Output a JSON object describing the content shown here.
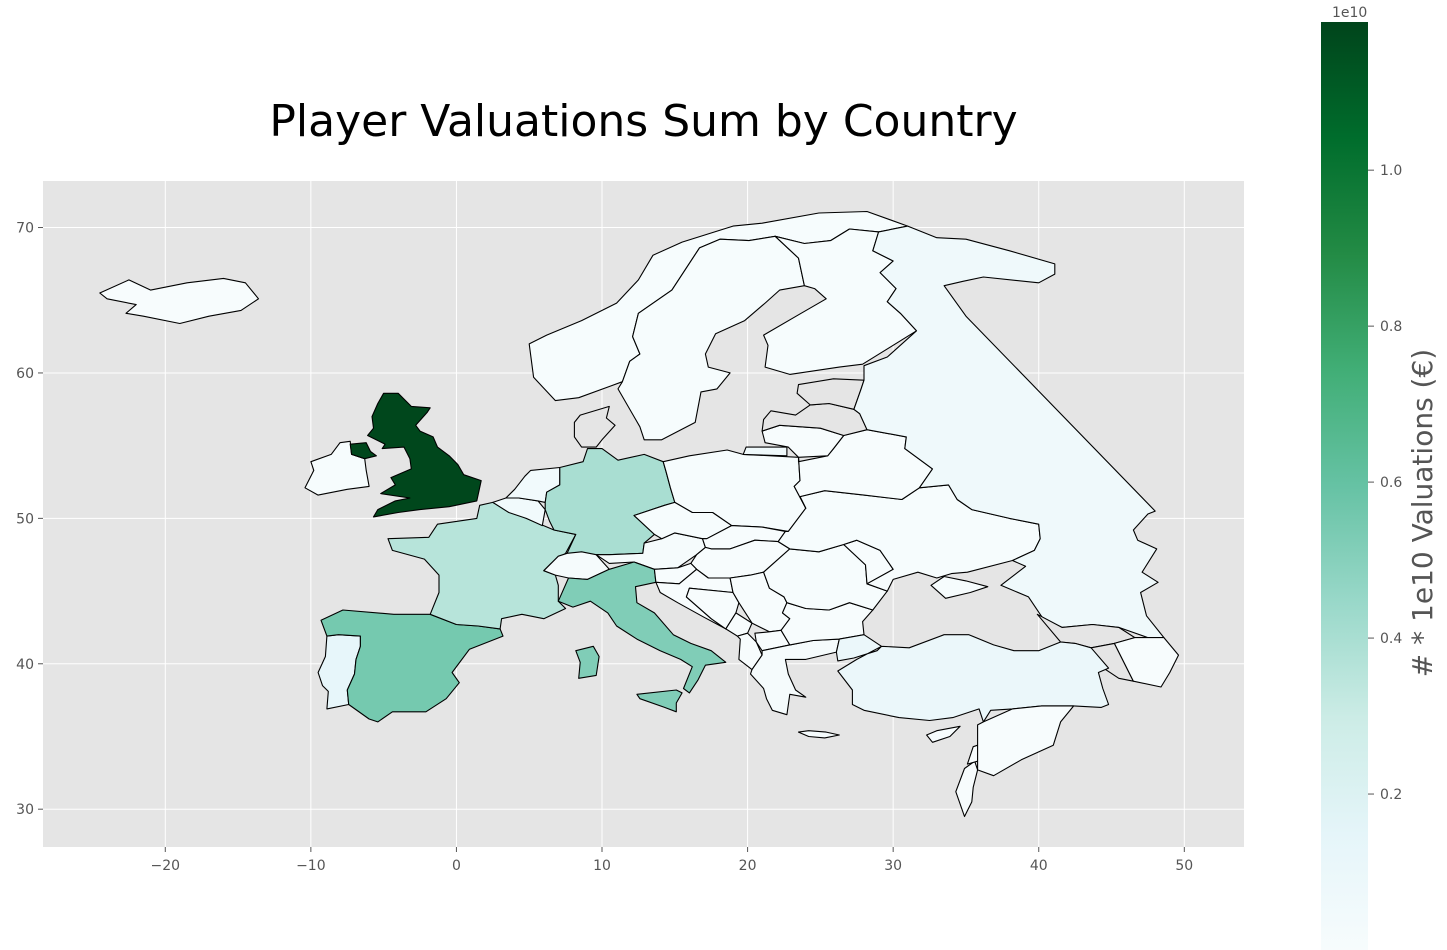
{
  "chart_data": {
    "type": "choropleth map",
    "title": "Player Valuations Sum by Country",
    "xlim": [
      -28.4,
      54.1
    ],
    "ylim": [
      27.4,
      73.2
    ],
    "x_ticks": [
      -20,
      -10,
      0,
      10,
      20,
      30,
      40,
      50
    ],
    "x_tick_labels": [
      "−20",
      "−10",
      "0",
      "10",
      "20",
      "30",
      "40",
      "50"
    ],
    "y_ticks": [
      30,
      40,
      50,
      60,
      70
    ],
    "y_tick_labels": [
      "30",
      "40",
      "50",
      "60",
      "70"
    ],
    "grid": true,
    "plot_background": "#e5e5e5",
    "no_data_color": "#e5e5e5",
    "colorbar": {
      "label": "# * 1e10 Valuations (€)",
      "offset_text": "1e10",
      "ticks": [
        0.2,
        0.4,
        0.6,
        0.8,
        1.0
      ],
      "tick_labels": [
        "0.2",
        "0.4",
        "0.6",
        "0.8",
        "1.0"
      ],
      "range": [
        0.0,
        1.19
      ],
      "colormap": "BuGn",
      "colors": [
        "#f7fcfd",
        "#e5f5f9",
        "#ccece6",
        "#99d8c9",
        "#66c2a4",
        "#41ae76",
        "#238b45",
        "#006d2c",
        "#00441b"
      ]
    },
    "regions": [
      {
        "name": "United Kingdom",
        "value": 1.18
      },
      {
        "name": "Spain",
        "value": 0.55
      },
      {
        "name": "Italy",
        "value": 0.52
      },
      {
        "name": "Germany",
        "value": 0.4
      },
      {
        "name": "France",
        "value": 0.36
      },
      {
        "name": "Portugal",
        "value": 0.13
      },
      {
        "name": "Turkey",
        "value": 0.1
      },
      {
        "name": "Russia",
        "value": 0.07
      },
      {
        "name": "Netherlands",
        "value": 0.05
      },
      {
        "name": "Belgium",
        "value": 0.05
      },
      {
        "name": "Switzerland",
        "value": 0.02
      },
      {
        "name": "Austria",
        "value": 0.02
      },
      {
        "name": "Ireland",
        "value": 0.01
      },
      {
        "name": "Norway",
        "value": 0.01
      },
      {
        "name": "Sweden",
        "value": 0.01
      },
      {
        "name": "Finland",
        "value": 0.01
      },
      {
        "name": "Poland",
        "value": 0.01
      },
      {
        "name": "Ukraine",
        "value": 0.01
      },
      {
        "name": "Iceland",
        "value": 0.0
      },
      {
        "name": "Cyprus",
        "value": 0.0
      },
      {
        "name": "Israel",
        "value": 0.0
      },
      {
        "name": "Greece",
        "value": 0.02
      },
      {
        "name": "Czechia",
        "value": 0.01
      },
      {
        "name": "Romania",
        "value": 0.01
      },
      {
        "name": "Denmark",
        "value": null
      },
      {
        "name": "Estonia",
        "value": null
      },
      {
        "name": "Latvia",
        "value": null
      },
      {
        "name": "Georgia",
        "value": null
      },
      {
        "name": "Armenia",
        "value": null
      }
    ]
  }
}
